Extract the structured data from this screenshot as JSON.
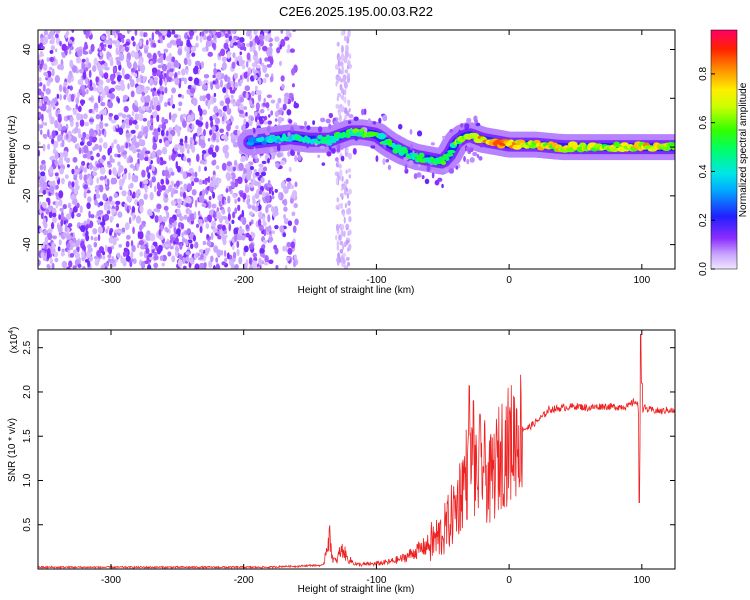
{
  "title": "C2E6.2025.195.00.03.R22",
  "chart_data": [
    {
      "type": "heatmap",
      "xlabel": "Height of straight line (km)",
      "ylabel": "Frequency (Hz)",
      "xlim": [
        -355,
        125
      ],
      "ylim": [
        -50,
        48
      ],
      "xticks": [
        "-300",
        "-200",
        "-100",
        "0",
        "100"
      ],
      "xtick_values": [
        -300,
        -200,
        -100,
        0,
        100
      ],
      "yticks": [
        "-40",
        "-20",
        "0",
        "20",
        "40"
      ],
      "ytick_values": [
        -40,
        -20,
        0,
        20,
        40
      ],
      "colorbar": {
        "label": "Normalized spectral amplitude",
        "range": [
          0,
          0.98
        ],
        "ticks": [
          "0.0",
          "0.2",
          "0.4",
          "0.6",
          "0.8"
        ],
        "tick_values": [
          0,
          0.2,
          0.4,
          0.6,
          0.8
        ],
        "colormap": "rainbow"
      },
      "noise_region_x": [
        -355,
        -160
      ],
      "signal_trace": {
        "x": [
          -195,
          -180,
          -165,
          -150,
          -135,
          -120,
          -110,
          -100,
          -90,
          -80,
          -70,
          -60,
          -50,
          -45,
          -40,
          -35,
          -30,
          -20,
          -10,
          0,
          20,
          40,
          60,
          80,
          100,
          125
        ],
        "freq": [
          2,
          3,
          4,
          3,
          3,
          6,
          6,
          5,
          1,
          -2,
          -4,
          -5,
          -6,
          -3,
          2,
          4,
          5,
          3,
          2,
          1,
          1,
          0,
          0,
          0,
          0,
          0
        ],
        "amp": [
          0.35,
          0.4,
          0.45,
          0.5,
          0.5,
          0.55,
          0.6,
          0.55,
          0.55,
          0.5,
          0.5,
          0.55,
          0.6,
          0.55,
          0.6,
          0.7,
          0.75,
          0.85,
          0.9,
          0.8,
          0.75,
          0.75,
          0.7,
          0.7,
          0.8,
          0.7
        ]
      }
    },
    {
      "type": "line",
      "xlabel": "Height of straight line (km)",
      "ylabel": "SNR (10 * v/v)",
      "scale_label": "(x10",
      "scale_exponent": "4",
      "xlim": [
        -355,
        125
      ],
      "ylim": [
        0,
        2.7
      ],
      "xticks": [
        "-300",
        "-200",
        "-100",
        "0",
        "100"
      ],
      "xtick_values": [
        -300,
        -200,
        -100,
        0,
        100
      ],
      "yticks": [
        "0.5",
        "1.0",
        "1.5",
        "2.0",
        "2.5"
      ],
      "ytick_values": [
        0.5,
        1.0,
        1.5,
        2.0,
        2.5
      ],
      "series_color": "#ee2222",
      "series": [
        {
          "x": [
            -355,
            -300,
            -250,
            -200,
            -180,
            -170,
            -160,
            -150,
            -140,
            -137,
            -135,
            -133,
            -130,
            -128,
            -125,
            -122,
            -120,
            -118,
            -115,
            -110,
            -100,
            -90,
            -80,
            -70,
            -60,
            -50,
            -45,
            -40,
            -35,
            -32,
            -30,
            -28,
            -25,
            -20,
            -15,
            -10,
            -5,
            0,
            5,
            10,
            15,
            20,
            25,
            30,
            40,
            50,
            60,
            70,
            80,
            90,
            95,
            97,
            99,
            100,
            102,
            105,
            110,
            115,
            120,
            125
          ],
          "y": [
            0.02,
            0.02,
            0.02,
            0.02,
            0.02,
            0.03,
            0.03,
            0.04,
            0.04,
            0.3,
            0.35,
            0.12,
            0.08,
            0.18,
            0.22,
            0.12,
            0.1,
            0.08,
            0.05,
            0.05,
            0.06,
            0.08,
            0.12,
            0.2,
            0.28,
            0.4,
            0.55,
            0.7,
            0.95,
            1.1,
            1.05,
            1.2,
            1.0,
            1.2,
            0.95,
            1.15,
            1.35,
            1.4,
            1.5,
            1.58,
            1.6,
            1.66,
            1.72,
            1.8,
            1.82,
            1.84,
            1.82,
            1.84,
            1.83,
            1.84,
            1.9,
            1.85,
            1.3,
            1.8,
            1.82,
            1.8,
            1.79,
            1.78,
            1.8,
            1.78
          ]
        }
      ],
      "spikes": [
        {
          "x": -30,
          "y": 2.07
        },
        {
          "x": -27,
          "y": 1.9
        },
        {
          "x": -22,
          "y": 1.75
        },
        {
          "x": 98,
          "y": 0.75
        },
        {
          "x": 99,
          "y": 2.65
        },
        {
          "x": 100,
          "y": 2.1
        }
      ]
    }
  ]
}
